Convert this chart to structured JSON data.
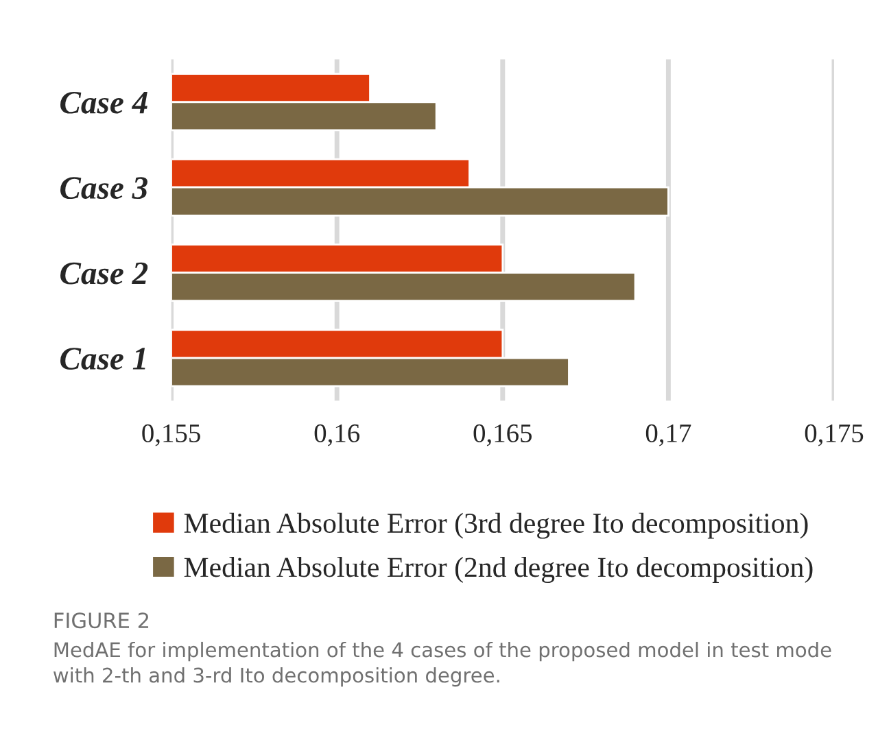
{
  "chart_data": {
    "type": "bar",
    "orientation": "horizontal",
    "categories": [
      "Case 4",
      "Case 3",
      "Case 2",
      "Case 1"
    ],
    "series": [
      {
        "name": "Median Absolute Error (3rd degree Ito decomposition)",
        "color": "#e03a0c",
        "values": [
          0.161,
          0.164,
          0.165,
          0.165
        ]
      },
      {
        "name": "Median Absolute Error (2nd degree Ito decomposition)",
        "color": "#7a6844",
        "values": [
          0.163,
          0.17,
          0.169,
          0.167
        ]
      }
    ],
    "xlim": [
      0.155,
      0.175
    ],
    "xticks": [
      {
        "value": 0.155,
        "label": "0,155"
      },
      {
        "value": 0.16,
        "label": "0,16"
      },
      {
        "value": 0.165,
        "label": "0,165"
      },
      {
        "value": 0.17,
        "label": "0,17"
      },
      {
        "value": 0.175,
        "label": "0,175"
      }
    ],
    "grid": "x",
    "legend": "bottom",
    "annotations": [
      "FIGURE 2",
      "MedAE for implementation of the 4 cases of the proposed model in test mode with 2-th and 3-rd Ito decomposition degree."
    ]
  }
}
